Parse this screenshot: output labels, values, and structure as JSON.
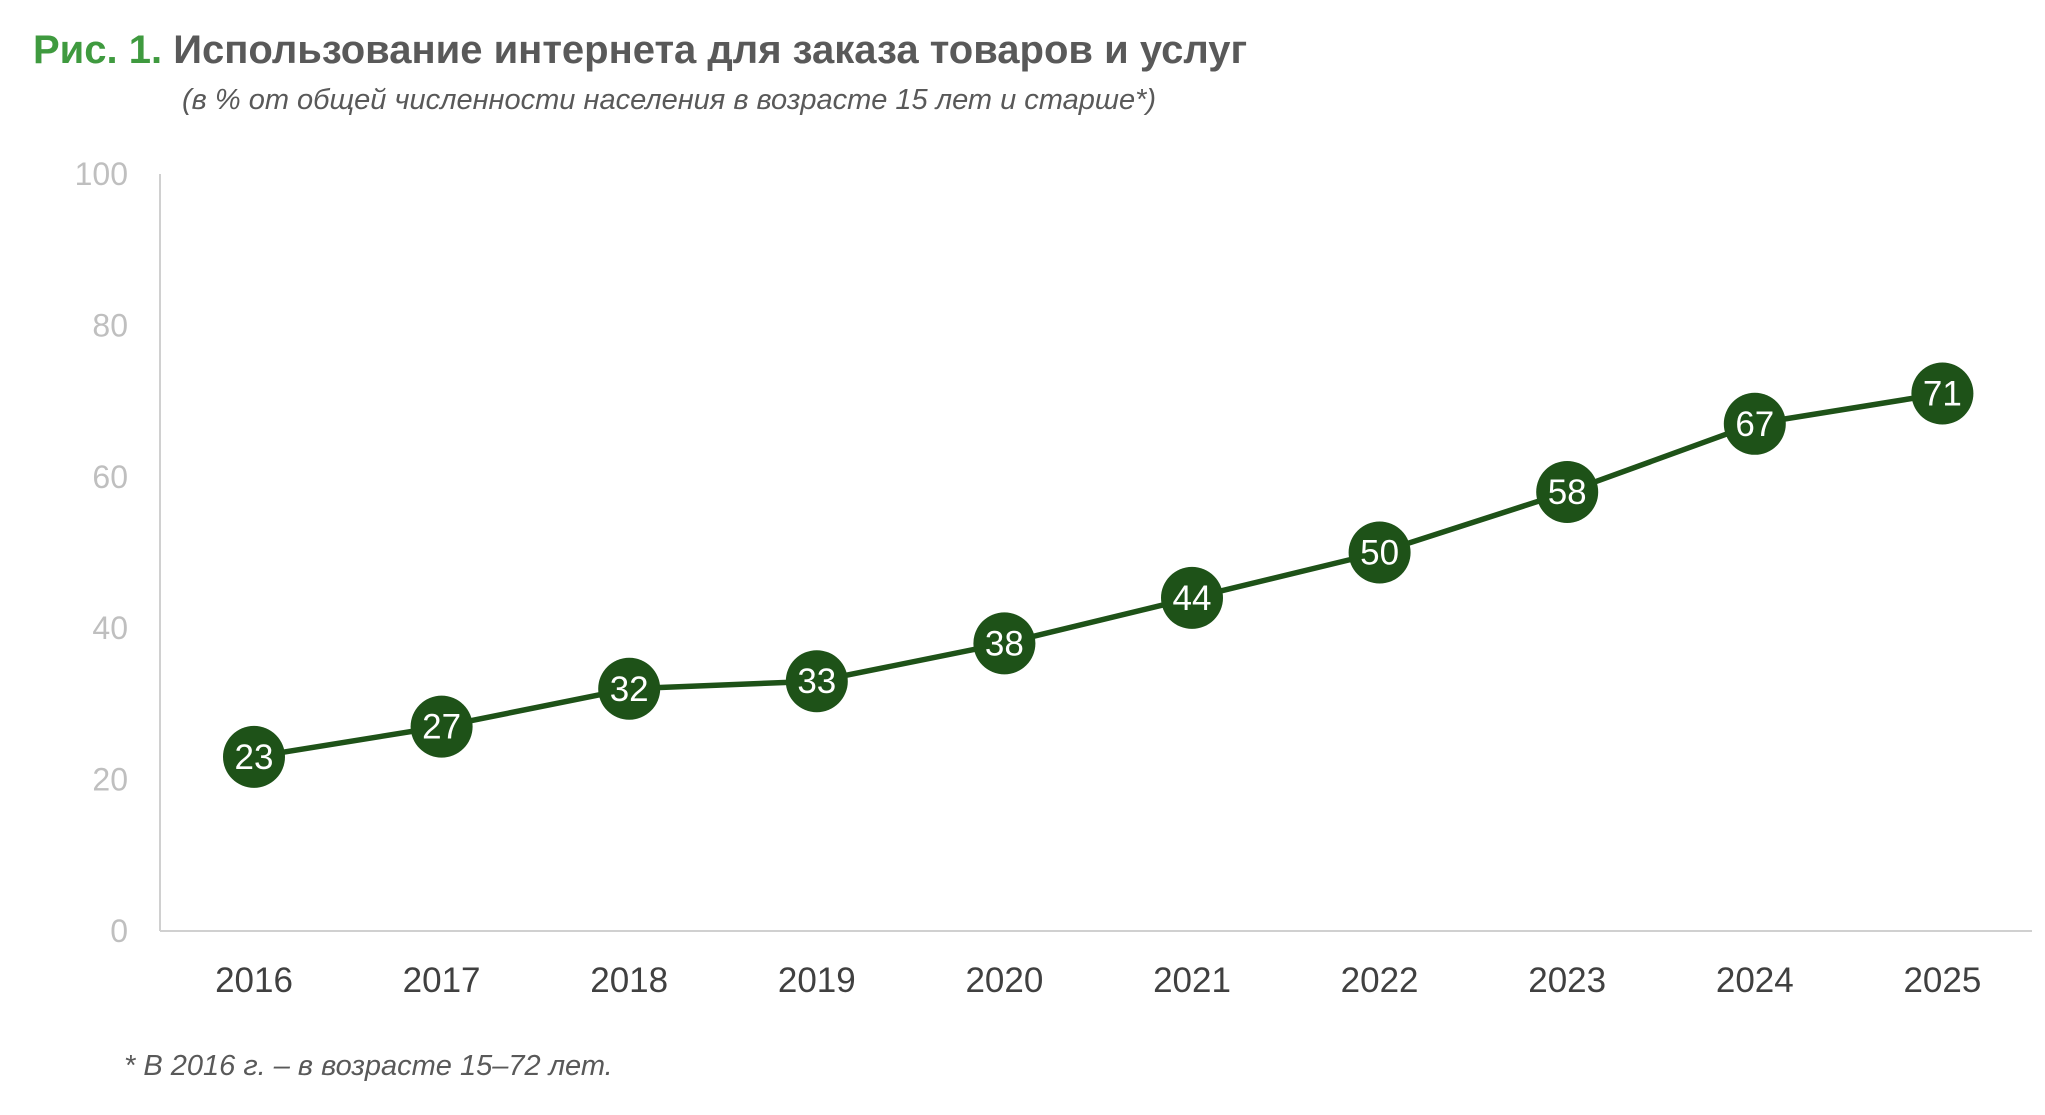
{
  "header": {
    "figure_label": "Рис. 1.",
    "title": "Использование интернета для заказа товаров и услуг",
    "subtitle": "(в % от общей численности населения в возрасте 15 лет и старше*)"
  },
  "footnote": "* В 2016 г. – в возрасте 15–72 лет.",
  "colors": {
    "line": "#1e5218",
    "marker": "#1e5218",
    "axis": "#d0d0d0",
    "ytick": "#bfbfbf",
    "xtick": "#404040",
    "accent": "#3f9a3f"
  },
  "chart_data": {
    "type": "line",
    "title": "Использование интернета для заказа товаров и услуг",
    "xlabel": "",
    "ylabel": "",
    "categories": [
      "2016",
      "2017",
      "2018",
      "2019",
      "2020",
      "2021",
      "2022",
      "2023",
      "2024",
      "2025"
    ],
    "series": [
      {
        "name": "Использование интернета для заказа товаров и услуг",
        "values": [
          23,
          27,
          32,
          33,
          38,
          44,
          50,
          58,
          67,
          71
        ]
      }
    ],
    "ylim": [
      0,
      100
    ],
    "yticks": [
      0,
      20,
      40,
      60,
      80,
      100
    ],
    "grid": false,
    "legend": "none",
    "data_labels": true
  }
}
